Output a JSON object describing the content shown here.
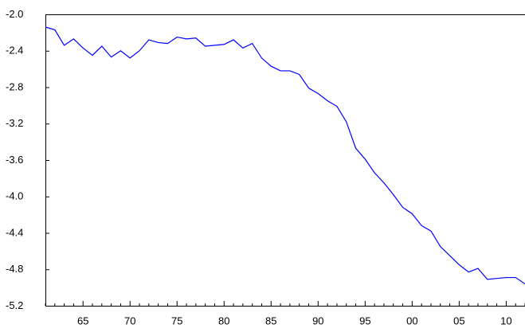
{
  "chart_data": {
    "type": "line",
    "categories": [
      null,
      null,
      null,
      null,
      "65",
      null,
      null,
      null,
      null,
      "70",
      null,
      null,
      null,
      null,
      "75",
      null,
      null,
      null,
      null,
      "80",
      null,
      null,
      null,
      null,
      "85",
      null,
      null,
      null,
      null,
      "90",
      null,
      null,
      null,
      null,
      "95",
      null,
      null,
      null,
      null,
      "00",
      null,
      null,
      null,
      null,
      "05",
      null,
      null,
      null,
      null,
      "10",
      null,
      null
    ],
    "series": [
      {
        "color": "#0000ff",
        "values": [
          -2.14,
          -2.17,
          -2.34,
          -2.27,
          -2.37,
          -2.45,
          -2.35,
          -2.47,
          -2.4,
          -2.48,
          -2.4,
          -2.28,
          -2.31,
          -2.32,
          -2.25,
          -2.27,
          -2.26,
          -2.35,
          -2.34,
          -2.33,
          -2.28,
          -2.37,
          -2.32,
          -2.48,
          -2.57,
          -2.62,
          -2.62,
          -2.66,
          -2.81,
          -2.87,
          -2.95,
          -3.01,
          -3.18,
          -3.47,
          -3.59,
          -3.74,
          -3.85,
          -3.98,
          -4.12,
          -4.19,
          -4.32,
          -4.38,
          -4.55,
          -4.65,
          -4.75,
          -4.83,
          -4.79,
          -4.91,
          -4.9,
          -4.89,
          -4.89,
          -4.96
        ]
      }
    ],
    "ylim": [
      -5.2,
      -2.0
    ],
    "yticks": [
      {
        "value": -2.0,
        "label": "-2.0"
      },
      -2.4,
      -2.8,
      -3.2,
      -3.6,
      {
        "value": -4.0,
        "label": "-4.0"
      },
      -4.4,
      -4.8,
      -5.2
    ]
  }
}
